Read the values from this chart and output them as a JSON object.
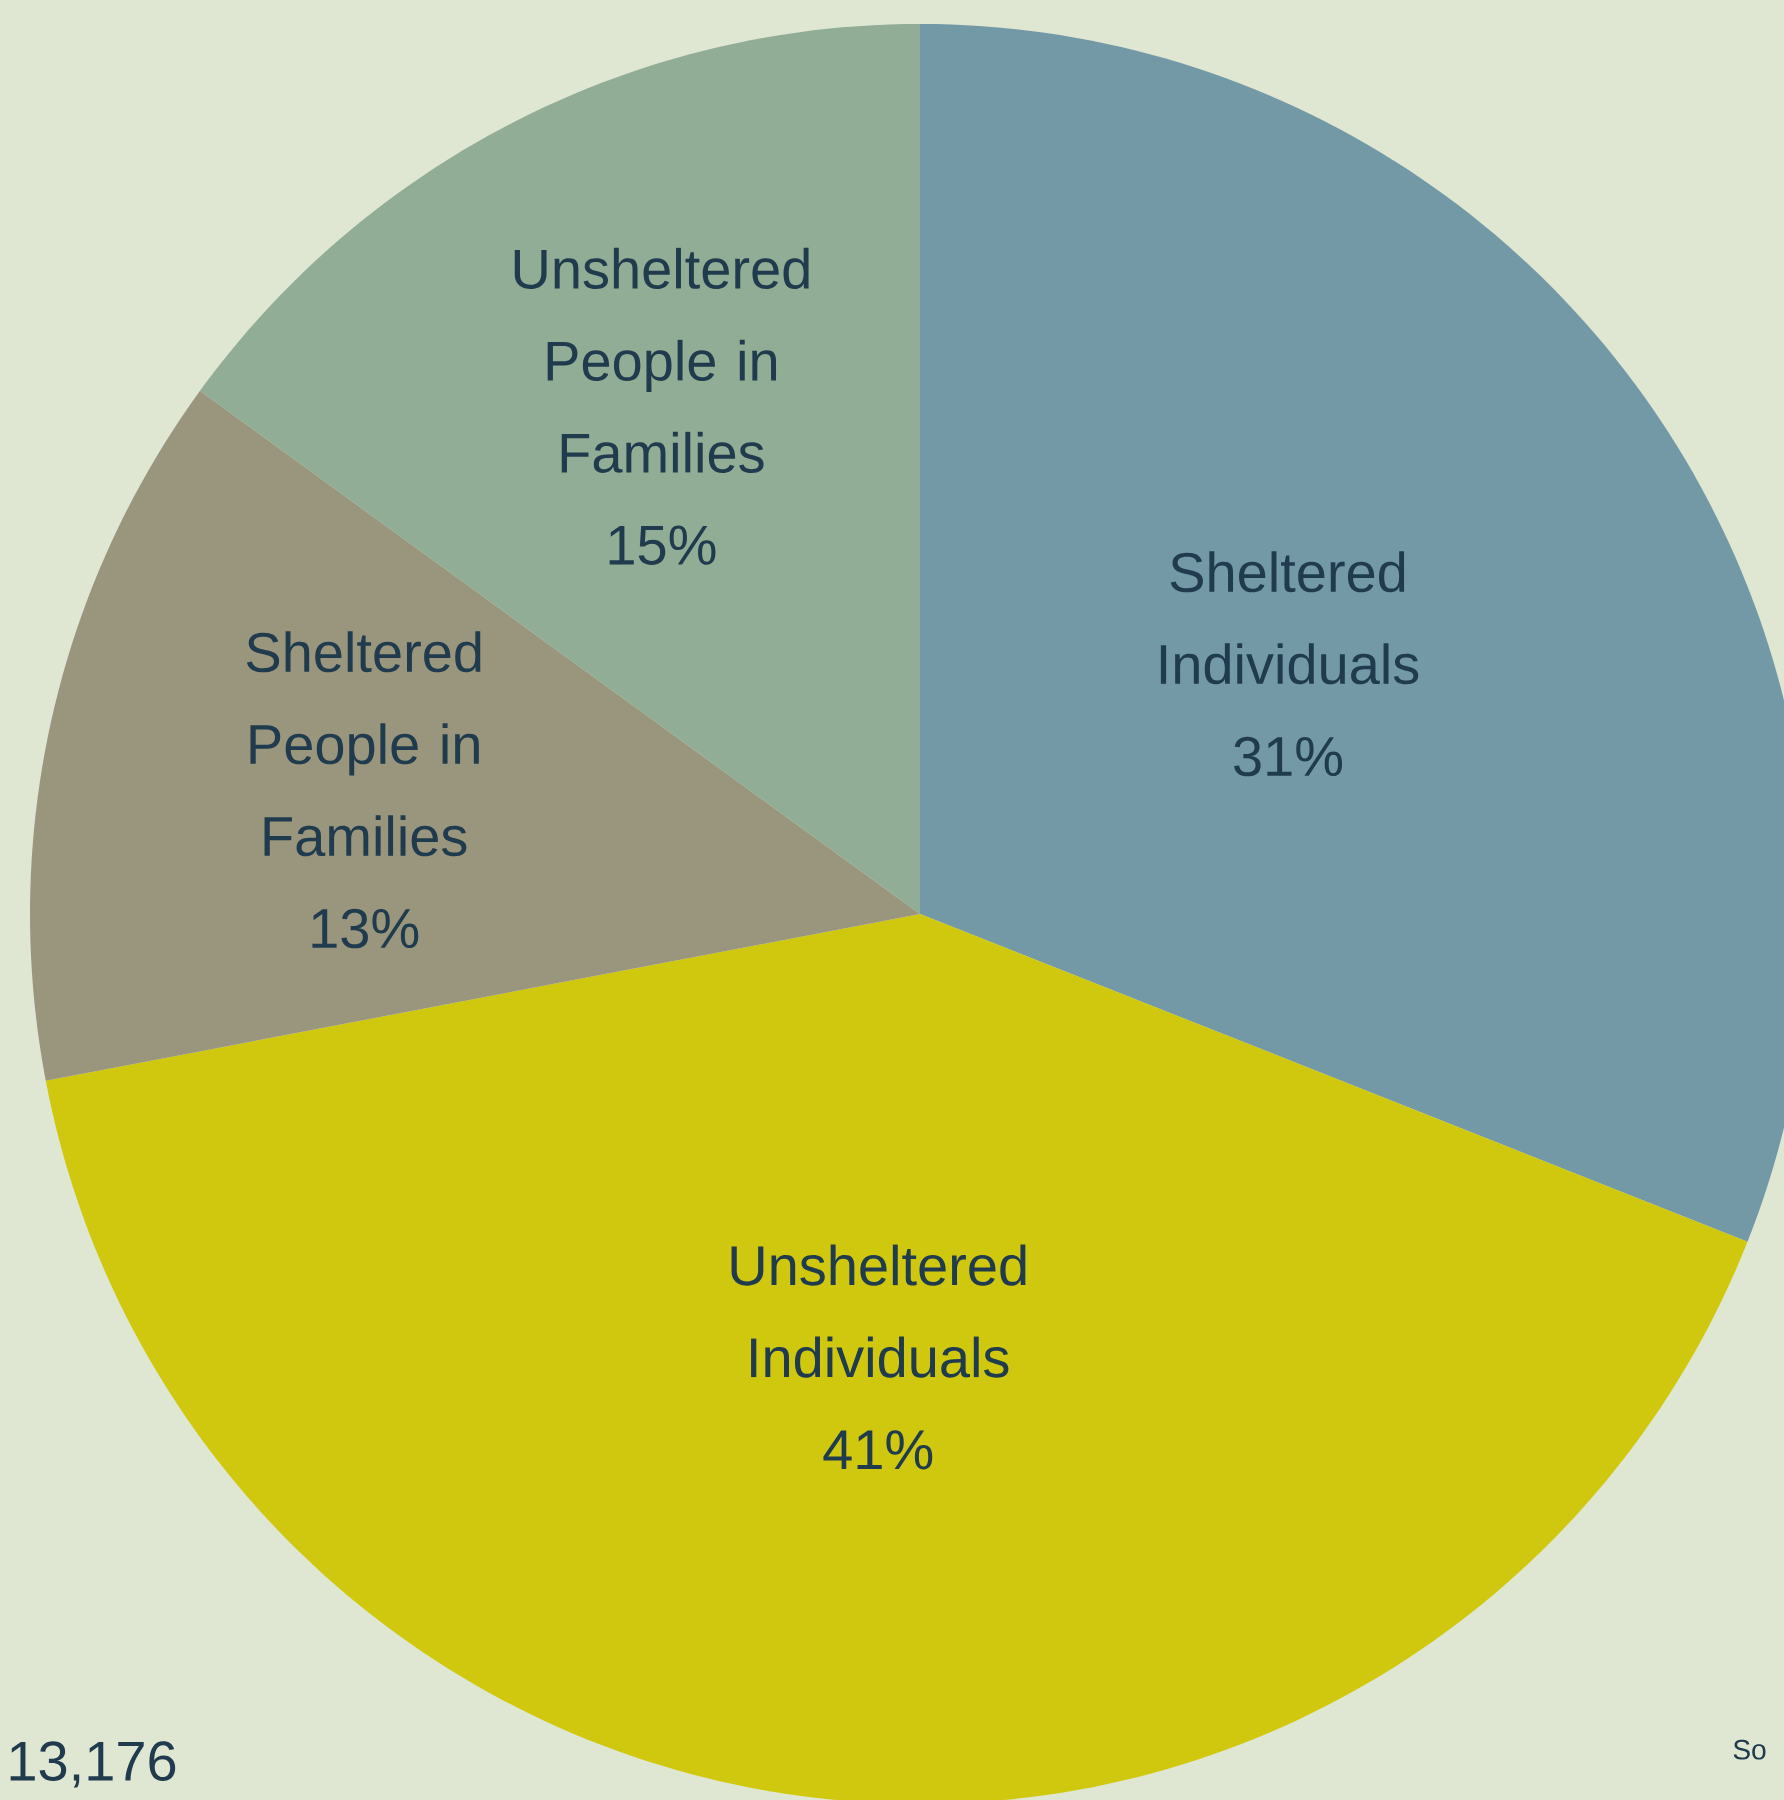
{
  "chart_data": {
    "type": "pie",
    "categories": [
      "Sheltered Individuals",
      "Unsheltered Individuals",
      "Sheltered People in Families",
      "Unsheltered People in Families"
    ],
    "values": [
      31,
      41,
      13,
      15
    ],
    "value_labels": [
      "31%",
      "41%",
      "13%",
      "15%"
    ],
    "colors": [
      "#7399a6",
      "#d0c80e",
      "#9a967e",
      "#91ad96"
    ],
    "annotations": [
      "13,176",
      "So"
    ]
  }
}
